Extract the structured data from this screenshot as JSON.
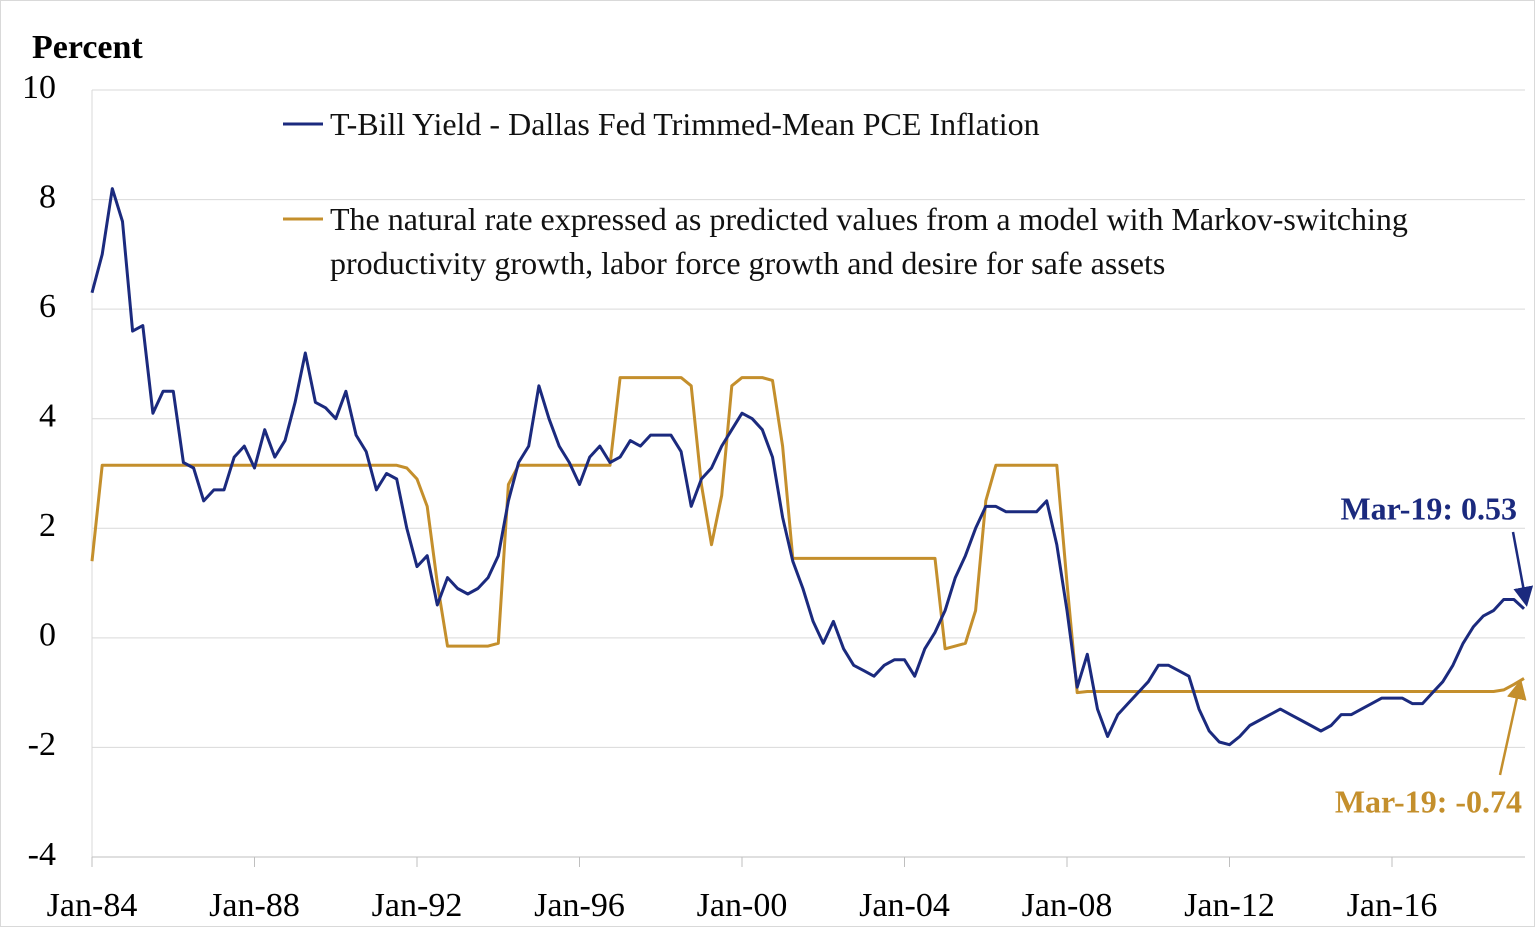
{
  "chart_data": {
    "type": "line",
    "y_label": "Percent",
    "x": [
      "Jan-84",
      null,
      null,
      null,
      null,
      null,
      null,
      null,
      null,
      null,
      null,
      null,
      null,
      null,
      null,
      null,
      "Jan-88",
      null,
      null,
      null,
      null,
      null,
      null,
      null,
      null,
      null,
      null,
      null,
      null,
      null,
      null,
      null,
      "Jan-92",
      null,
      null,
      null,
      null,
      null,
      null,
      null,
      null,
      null,
      null,
      null,
      null,
      null,
      null,
      null,
      "Jan-96",
      null,
      null,
      null,
      null,
      null,
      null,
      null,
      null,
      null,
      null,
      null,
      null,
      null,
      null,
      null,
      "Jan-00",
      null,
      null,
      null,
      null,
      null,
      null,
      null,
      null,
      null,
      null,
      null,
      null,
      null,
      null,
      null,
      "Jan-04",
      null,
      null,
      null,
      null,
      null,
      null,
      null,
      null,
      null,
      null,
      null,
      null,
      null,
      null,
      null,
      "Jan-08",
      null,
      null,
      null,
      null,
      null,
      null,
      null,
      null,
      null,
      null,
      null,
      null,
      null,
      null,
      null,
      "Jan-12",
      null,
      null,
      null,
      null,
      null,
      null,
      null,
      null,
      null,
      null,
      null,
      null,
      null,
      null,
      null,
      "Jan-16",
      null,
      null,
      null,
      null,
      null,
      null,
      null,
      null,
      null,
      null,
      null,
      null,
      null
    ],
    "series": [
      {
        "name": "T-Bill Yield - Dallas Fed Trimmed-Mean PCE Inflation",
        "color": "#1b2a7e",
        "values": [
          6.3,
          7.0,
          8.2,
          7.6,
          5.6,
          5.7,
          4.1,
          4.5,
          4.5,
          3.2,
          3.1,
          2.5,
          2.7,
          2.7,
          3.3,
          3.5,
          3.1,
          3.8,
          3.3,
          3.6,
          4.3,
          5.2,
          4.3,
          4.2,
          4.0,
          4.5,
          3.7,
          3.4,
          2.7,
          3.0,
          2.9,
          2.0,
          1.3,
          1.5,
          0.6,
          1.1,
          0.9,
          0.8,
          0.9,
          1.1,
          1.5,
          2.5,
          3.2,
          3.5,
          4.6,
          4.0,
          3.5,
          3.2,
          2.8,
          3.3,
          3.5,
          3.2,
          3.3,
          3.6,
          3.5,
          3.7,
          3.7,
          3.7,
          3.4,
          2.4,
          2.9,
          3.1,
          3.5,
          3.8,
          4.1,
          4.0,
          3.8,
          3.3,
          2.2,
          1.4,
          0.9,
          0.3,
          -0.1,
          0.3,
          -0.2,
          -0.5,
          -0.6,
          -0.7,
          -0.5,
          -0.4,
          -0.4,
          -0.7,
          -0.2,
          0.1,
          0.5,
          1.1,
          1.5,
          2.0,
          2.4,
          2.4,
          2.3,
          2.3,
          2.3,
          2.3,
          2.5,
          1.7,
          0.5,
          -0.9,
          -0.3,
          -1.3,
          -1.8,
          -1.4,
          -1.2,
          -1.0,
          -0.8,
          -0.5,
          -0.5,
          -0.6,
          -0.7,
          -1.3,
          -1.7,
          -1.9,
          -1.95,
          -1.8,
          -1.6,
          -1.5,
          -1.4,
          -1.3,
          -1.4,
          -1.5,
          -1.6,
          -1.7,
          -1.6,
          -1.4,
          -1.4,
          -1.3,
          -1.2,
          -1.1,
          -1.1,
          -1.1,
          -1.2,
          -1.2,
          -1.0,
          -0.8,
          -0.5,
          -0.1,
          0.2,
          0.4,
          0.5,
          0.7,
          0.7,
          0.53
        ]
      },
      {
        "name": "The natural rate expressed as predicted values from a model with Markov-switching productivity growth, labor force growth and desire for safe assets",
        "color": "#c48f2c",
        "values": [
          1.4,
          3.15,
          3.15,
          3.15,
          3.15,
          3.15,
          3.15,
          3.15,
          3.15,
          3.15,
          3.15,
          3.15,
          3.15,
          3.15,
          3.15,
          3.15,
          3.15,
          3.15,
          3.15,
          3.15,
          3.15,
          3.15,
          3.15,
          3.15,
          3.15,
          3.15,
          3.15,
          3.15,
          3.15,
          3.15,
          3.15,
          3.1,
          2.9,
          2.4,
          1.0,
          -0.15,
          -0.15,
          -0.15,
          -0.15,
          -0.15,
          -0.1,
          2.8,
          3.15,
          3.15,
          3.15,
          3.15,
          3.15,
          3.15,
          3.15,
          3.15,
          3.15,
          3.15,
          4.75,
          4.75,
          4.75,
          4.75,
          4.75,
          4.75,
          4.75,
          4.6,
          2.8,
          1.7,
          2.6,
          4.6,
          4.75,
          4.75,
          4.75,
          4.7,
          3.5,
          1.45,
          1.45,
          1.45,
          1.45,
          1.45,
          1.45,
          1.45,
          1.45,
          1.45,
          1.45,
          1.45,
          1.45,
          1.45,
          1.45,
          1.45,
          -0.2,
          -0.15,
          -0.1,
          0.5,
          2.5,
          3.15,
          3.15,
          3.15,
          3.15,
          3.15,
          3.15,
          3.15,
          1.0,
          -1.0,
          -0.98,
          -0.98,
          -0.98,
          -0.98,
          -0.98,
          -0.98,
          -0.98,
          -0.98,
          -0.98,
          -0.98,
          -0.98,
          -0.98,
          -0.98,
          -0.98,
          -0.98,
          -0.98,
          -0.98,
          -0.98,
          -0.98,
          -0.98,
          -0.98,
          -0.98,
          -0.98,
          -0.98,
          -0.98,
          -0.98,
          -0.98,
          -0.98,
          -0.98,
          -0.98,
          -0.98,
          -0.98,
          -0.98,
          -0.98,
          -0.98,
          -0.98,
          -0.98,
          -0.98,
          -0.98,
          -0.98,
          -0.98,
          -0.95,
          -0.85,
          -0.74
        ]
      }
    ],
    "annotations": [
      "Mar-19: 0.53",
      "Mar-19: -0.74"
    ],
    "ylim": [
      -4,
      10
    ],
    "yticks": [
      -4,
      -2,
      0,
      2,
      4,
      6,
      8,
      10
    ],
    "grid": true
  }
}
